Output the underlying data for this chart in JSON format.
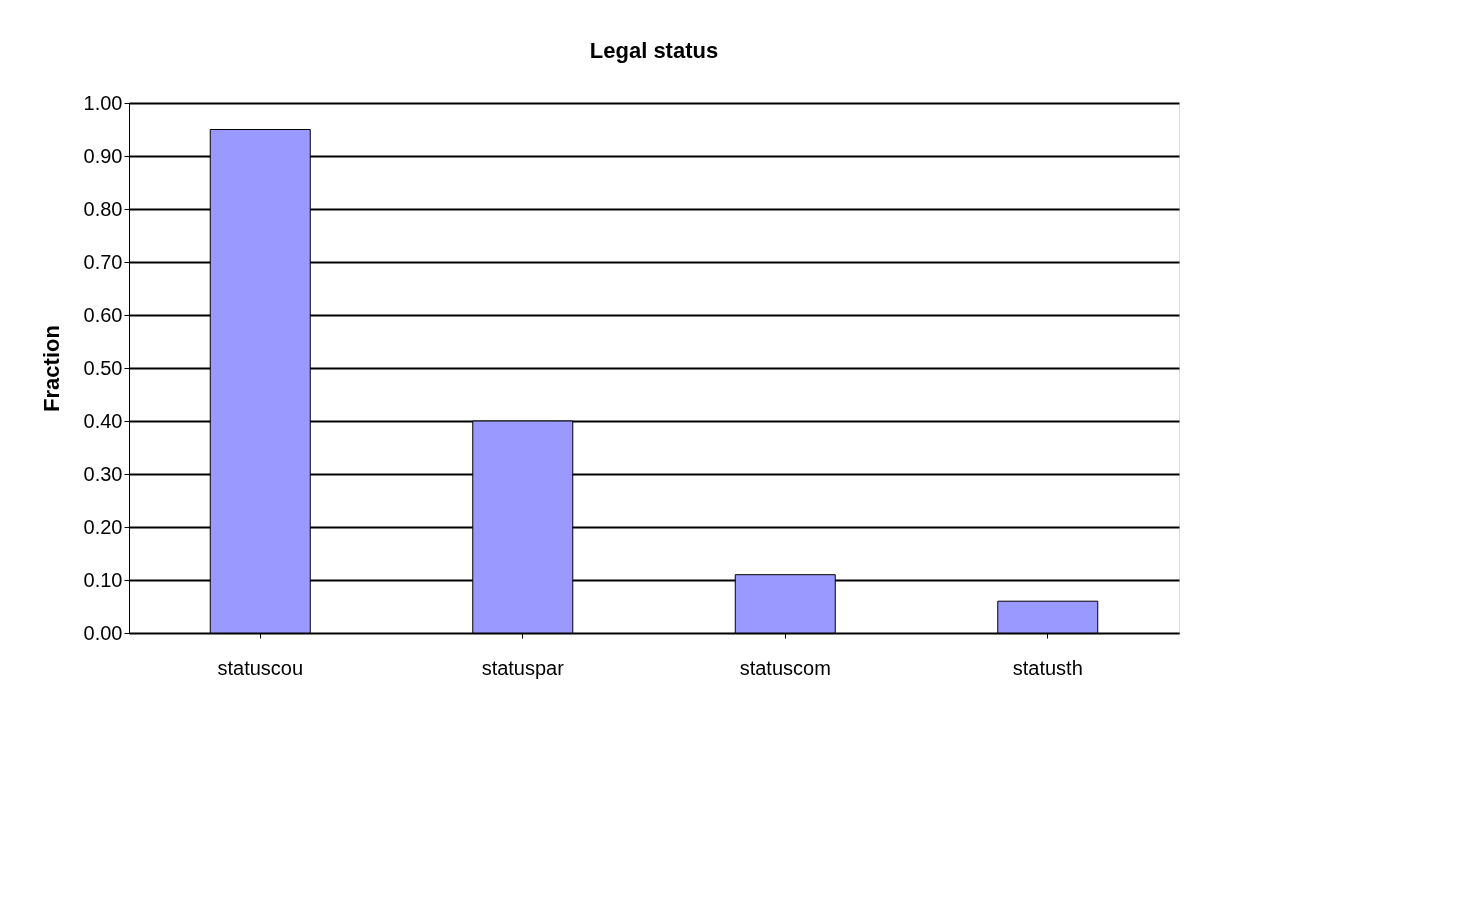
{
  "chart_data": {
    "type": "bar",
    "title": "Legal status",
    "ylabel": "Fraction",
    "categories": [
      "statuscou",
      "statuspar",
      "statuscom",
      "statusth"
    ],
    "values": [
      0.95,
      0.4,
      0.11,
      0.06
    ],
    "color": "#9999ff",
    "ylim": [
      0,
      1
    ],
    "yticks": [
      {
        "value": 0,
        "label": "0.00"
      },
      {
        "value": 0.1,
        "label": "0.10"
      },
      {
        "value": 0.2,
        "label": "0.20"
      },
      {
        "value": 0.3,
        "label": "0.30"
      },
      {
        "value": 0.4,
        "label": "0.40"
      },
      {
        "value": 0.5,
        "label": "0.50"
      },
      {
        "value": 0.6,
        "label": "0.60"
      },
      {
        "value": 0.7,
        "label": "0.70"
      },
      {
        "value": 0.8,
        "label": "0.80"
      },
      {
        "value": 0.9,
        "label": "0.90"
      },
      {
        "value": 1,
        "label": "1.00"
      }
    ],
    "grid": "y"
  }
}
